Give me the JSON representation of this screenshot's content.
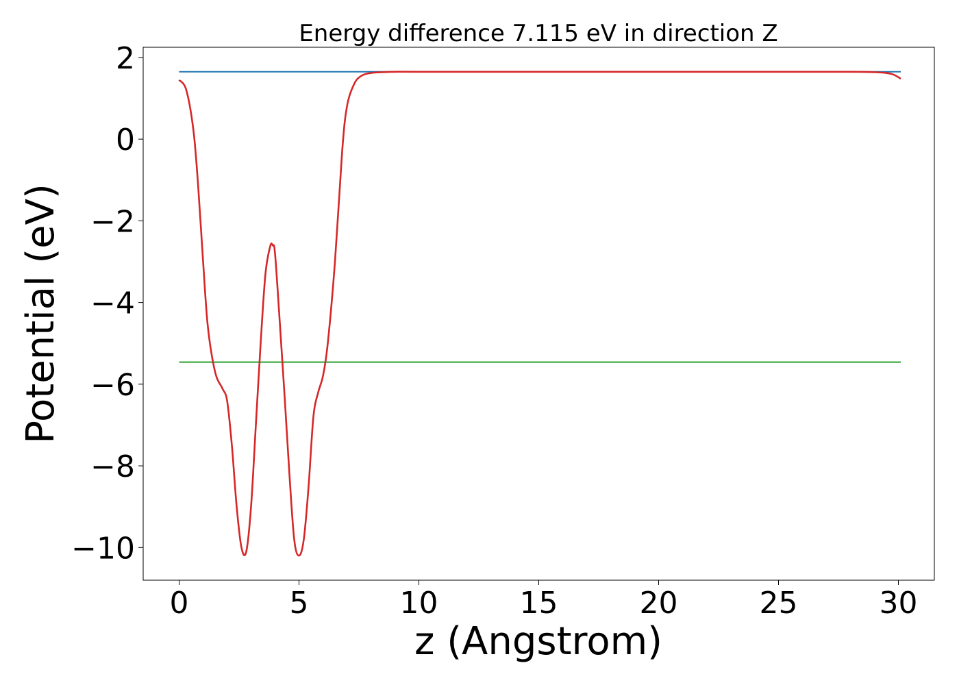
{
  "chart_data": {
    "type": "line",
    "title": "Energy difference 7.115 eV in direction Z",
    "xlabel": "z (Angstrom)",
    "ylabel": "Potential (eV)",
    "xlim": [
      -1.5,
      31.5
    ],
    "ylim": [
      -10.8,
      2.25
    ],
    "xticks": [
      0,
      5,
      10,
      15,
      20,
      25,
      30
    ],
    "xtick_labels": [
      "0",
      "5",
      "10",
      "15",
      "20",
      "25",
      "30"
    ],
    "yticks": [
      2,
      0,
      -2,
      -4,
      -6,
      -8,
      -10
    ],
    "ytick_labels": [
      "2",
      "0",
      "−2",
      "−4",
      "−6",
      "−8",
      "−10"
    ],
    "grid": false,
    "series": [
      {
        "color": "#1f77b4",
        "x": [
          0,
          30.1
        ],
        "y": [
          1.65,
          1.65
        ]
      },
      {
        "color": "#2ca02c",
        "x": [
          0,
          30.1
        ],
        "y": [
          -5.46,
          -5.46
        ]
      },
      {
        "color": "#d62728",
        "x": [
          0,
          0.3,
          0.6,
          0.8,
          1.0,
          1.2,
          1.5,
          1.8,
          2.0,
          2.2,
          2.4,
          2.6,
          2.8,
          3.0,
          3.2,
          3.4,
          3.6,
          3.8,
          3.9,
          4.0,
          4.2,
          4.4,
          4.6,
          4.8,
          5.0,
          5.2,
          5.4,
          5.6,
          5.8,
          6.0,
          6.2,
          6.5,
          6.8,
          7.0,
          7.3,
          7.6,
          8.0,
          8.5,
          9.0,
          10.0,
          15.0,
          20.0,
          25.0,
          28.0,
          29.0,
          29.5,
          29.8,
          30.1
        ],
        "y": [
          1.45,
          1.2,
          0.2,
          -1.2,
          -3.0,
          -4.6,
          -5.7,
          -6.1,
          -6.4,
          -7.5,
          -9.0,
          -10.0,
          -10.1,
          -9.0,
          -7.0,
          -5.0,
          -3.3,
          -2.62,
          -2.6,
          -2.8,
          -4.5,
          -6.3,
          -8.2,
          -9.8,
          -10.2,
          -9.8,
          -8.5,
          -6.8,
          -6.2,
          -5.8,
          -5.0,
          -3.0,
          -0.3,
          0.8,
          1.35,
          1.55,
          1.62,
          1.64,
          1.65,
          1.65,
          1.65,
          1.65,
          1.65,
          1.65,
          1.64,
          1.62,
          1.58,
          1.48
        ]
      }
    ]
  }
}
